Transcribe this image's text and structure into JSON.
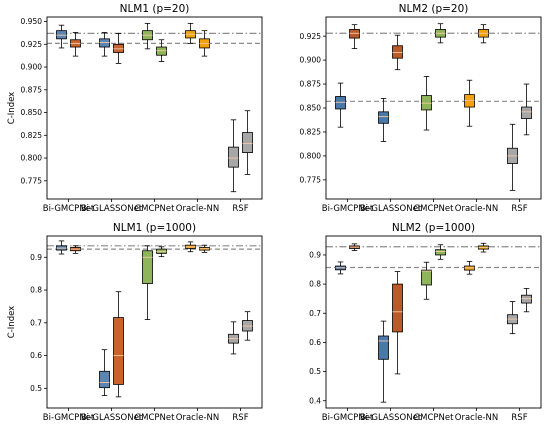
{
  "chart_data": [
    {
      "type": "boxplot",
      "title": "NLM1 (p=20)",
      "ylabel": "C-Index",
      "ylim": [
        0.755,
        0.955
      ],
      "yticks": [
        "0.950",
        "0.925",
        "0.900",
        "0.875",
        "0.850",
        "0.825",
        "0.800",
        "0.775"
      ],
      "ytick_values": [
        0.95,
        0.925,
        0.9,
        0.875,
        0.85,
        0.825,
        0.8,
        0.775
      ],
      "categories": [
        "Bi-GMCPNet",
        "Bi-GLASSONet",
        "GMCPNet",
        "Oracle-NN",
        "RSF"
      ],
      "reference_lines": [
        {
          "style": "dashdot",
          "y": 0.937
        },
        {
          "style": "dashed",
          "y": 0.926
        }
      ],
      "series": [
        {
          "color": "#5b85b3",
          "boxes": [
            {
              "whislo": 0.921,
              "q1": 0.931,
              "med": 0.935,
              "q3": 0.94,
              "whishi": 0.946
            },
            {
              "whislo": 0.912,
              "q1": 0.922,
              "med": 0.927,
              "q3": 0.931,
              "whishi": 0.938
            },
            {
              "whislo": 0.92,
              "q1": 0.93,
              "med": 0.935,
              "q3": 0.94,
              "whishi": 0.948
            },
            {
              "whislo": 0.926,
              "q1": 0.932,
              "med": 0.936,
              "q3": 0.94,
              "whishi": 0.948
            },
            {
              "whislo": 0.763,
              "q1": 0.79,
              "med": 0.8,
              "q3": 0.812,
              "whishi": 0.842
            }
          ]
        },
        {
          "color": "#c8632e",
          "boxes": [
            {
              "whislo": 0.912,
              "q1": 0.922,
              "med": 0.926,
              "q3": 0.93,
              "whishi": 0.938
            },
            {
              "whislo": 0.904,
              "q1": 0.916,
              "med": 0.92,
              "q3": 0.925,
              "whishi": 0.937
            },
            {
              "whislo": 0.906,
              "q1": 0.913,
              "med": 0.918,
              "q3": 0.922,
              "whishi": 0.93
            },
            {
              "whislo": 0.912,
              "q1": 0.921,
              "med": 0.926,
              "q3": 0.931,
              "whishi": 0.94
            },
            {
              "whislo": 0.782,
              "q1": 0.806,
              "med": 0.816,
              "q3": 0.828,
              "whishi": 0.852
            }
          ]
        }
      ]
    },
    {
      "type": "boxplot",
      "title": "NLM2 (p=20)",
      "ylabel": "",
      "ylim": [
        0.755,
        0.945
      ],
      "yticks": [
        "0.925",
        "0.900",
        "0.875",
        "0.850",
        "0.825",
        "0.800",
        "0.775"
      ],
      "ytick_values": [
        0.925,
        0.9,
        0.875,
        0.85,
        0.825,
        0.8,
        0.775
      ],
      "categories": [
        "Bi-GMCPNet",
        "Bi-GLASSONet",
        "GMCPNet",
        "Oracle-NN",
        "RSF"
      ],
      "reference_lines": [
        {
          "style": "dashdot",
          "y": 0.928
        },
        {
          "style": "dashed",
          "y": 0.857
        }
      ],
      "series": [
        {
          "color": "#4a78a8",
          "boxes": [
            {
              "whislo": 0.83,
              "q1": 0.849,
              "med": 0.856,
              "q3": 0.862,
              "whishi": 0.876
            },
            {
              "whislo": 0.815,
              "q1": 0.834,
              "med": 0.841,
              "q3": 0.846,
              "whishi": 0.86
            },
            {
              "whislo": 0.827,
              "q1": 0.848,
              "med": 0.855,
              "q3": 0.863,
              "whishi": 0.883
            },
            {
              "whislo": 0.831,
              "q1": 0.851,
              "med": 0.858,
              "q3": 0.864,
              "whishi": 0.879
            },
            {
              "whislo": 0.764,
              "q1": 0.792,
              "med": 0.8,
              "q3": 0.808,
              "whishi": 0.833
            }
          ]
        },
        {
          "color": "#b85a2a",
          "boxes": [
            {
              "whislo": 0.912,
              "q1": 0.923,
              "med": 0.928,
              "q3": 0.932,
              "whishi": 0.937
            },
            {
              "whislo": 0.89,
              "q1": 0.902,
              "med": 0.908,
              "q3": 0.915,
              "whishi": 0.926
            },
            {
              "whislo": 0.918,
              "q1": 0.924,
              "med": 0.928,
              "q3": 0.932,
              "whishi": 0.938
            },
            {
              "whislo": 0.918,
              "q1": 0.924,
              "med": 0.928,
              "q3": 0.932,
              "whishi": 0.937
            },
            {
              "whislo": 0.822,
              "q1": 0.839,
              "med": 0.846,
              "q3": 0.851,
              "whishi": 0.875
            }
          ]
        }
      ]
    },
    {
      "type": "boxplot",
      "title": "NLM1 (p=1000)",
      "ylabel": "C-Index",
      "ylim": [
        0.44,
        0.965
      ],
      "yticks": [
        "0.9",
        "0.8",
        "0.7",
        "0.6",
        "0.5"
      ],
      "ytick_values": [
        0.9,
        0.8,
        0.7,
        0.6,
        0.5
      ],
      "categories": [
        "Bi-GMCPNet",
        "Bi-GLASSONet",
        "GMCPNet",
        "Oracle-NN",
        "RSF"
      ],
      "reference_lines": [
        {
          "style": "dashdot",
          "y": 0.935
        },
        {
          "style": "dashed",
          "y": 0.925
        }
      ],
      "series": [
        {
          "color": "#5b85b3",
          "boxes": [
            {
              "whislo": 0.91,
              "q1": 0.922,
              "med": 0.928,
              "q3": 0.935,
              "whishi": 0.95
            },
            {
              "whislo": 0.478,
              "q1": 0.502,
              "med": 0.518,
              "q3": 0.552,
              "whishi": 0.618
            },
            {
              "whislo": 0.71,
              "q1": 0.82,
              "med": 0.9,
              "q3": 0.92,
              "whishi": 0.935
            },
            {
              "whislo": 0.917,
              "q1": 0.927,
              "med": 0.932,
              "q3": 0.937,
              "whishi": 0.947
            },
            {
              "whislo": 0.605,
              "q1": 0.638,
              "med": 0.652,
              "q3": 0.665,
              "whishi": 0.703
            }
          ]
        },
        {
          "color": "#c8632e",
          "boxes": [
            {
              "whislo": 0.912,
              "q1": 0.92,
              "med": 0.925,
              "q3": 0.93,
              "whishi": 0.935
            },
            {
              "whislo": 0.474,
              "q1": 0.512,
              "med": 0.6,
              "q3": 0.716,
              "whishi": 0.795
            },
            {
              "whislo": 0.902,
              "q1": 0.912,
              "med": 0.918,
              "q3": 0.925,
              "whishi": 0.932
            },
            {
              "whislo": 0.915,
              "q1": 0.922,
              "med": 0.926,
              "q3": 0.93,
              "whishi": 0.937
            },
            {
              "whislo": 0.647,
              "q1": 0.675,
              "med": 0.69,
              "q3": 0.707,
              "whishi": 0.734
            }
          ]
        }
      ]
    },
    {
      "type": "boxplot",
      "title": "NLM2 (p=1000)",
      "ylabel": "",
      "ylim": [
        0.375,
        0.965
      ],
      "yticks": [
        "0.9",
        "0.8",
        "0.7",
        "0.6",
        "0.5",
        "0.4"
      ],
      "ytick_values": [
        0.9,
        0.8,
        0.7,
        0.6,
        0.5,
        0.4
      ],
      "categories": [
        "Bi-GMCPNet",
        "Bi-GLASSONet",
        "GMCPNet",
        "Oracle-NN",
        "RSF"
      ],
      "reference_lines": [
        {
          "style": "dashdot",
          "y": 0.928
        },
        {
          "style": "dashed",
          "y": 0.857
        }
      ],
      "series": [
        {
          "color": "#4a78a8",
          "boxes": [
            {
              "whislo": 0.835,
              "q1": 0.849,
              "med": 0.856,
              "q3": 0.862,
              "whishi": 0.876
            },
            {
              "whislo": 0.395,
              "q1": 0.542,
              "med": 0.605,
              "q3": 0.622,
              "whishi": 0.673
            },
            {
              "whislo": 0.748,
              "q1": 0.797,
              "med": 0.845,
              "q3": 0.848,
              "whishi": 0.875
            },
            {
              "whislo": 0.834,
              "q1": 0.848,
              "med": 0.856,
              "q3": 0.862,
              "whishi": 0.878
            },
            {
              "whislo": 0.63,
              "q1": 0.664,
              "med": 0.68,
              "q3": 0.695,
              "whishi": 0.74
            }
          ]
        },
        {
          "color": "#b85a2a",
          "boxes": [
            {
              "whislo": 0.915,
              "q1": 0.922,
              "med": 0.927,
              "q3": 0.931,
              "whishi": 0.938
            },
            {
              "whislo": 0.492,
              "q1": 0.636,
              "med": 0.705,
              "q3": 0.8,
              "whishi": 0.843
            },
            {
              "whislo": 0.885,
              "q1": 0.9,
              "med": 0.912,
              "q3": 0.918,
              "whishi": 0.935
            },
            {
              "whislo": 0.91,
              "q1": 0.92,
              "med": 0.926,
              "q3": 0.931,
              "whishi": 0.94
            },
            {
              "whislo": 0.705,
              "q1": 0.735,
              "med": 0.75,
              "q3": 0.762,
              "whishi": 0.785
            }
          ]
        }
      ]
    }
  ],
  "box_colors": {
    "GMCPNet": "#8fb55a",
    "Oracle-NN": "#f2a20d",
    "RSF": "#a7a7a7"
  }
}
